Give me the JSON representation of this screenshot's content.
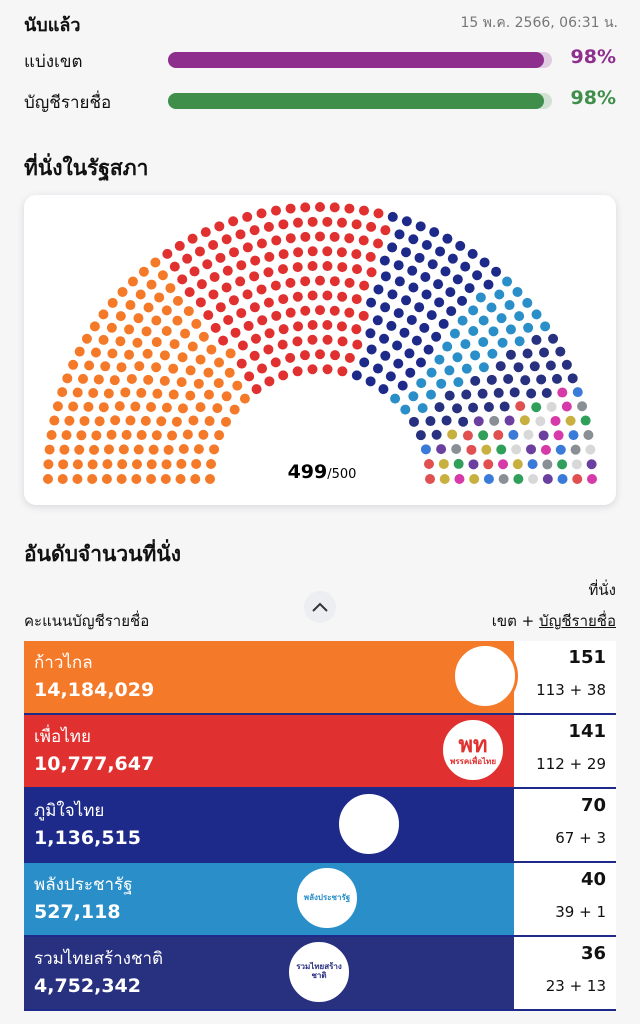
{
  "header": {
    "title": "นับแล้ว",
    "timestamp": "15 พ.ค. 2566, 06:31 น."
  },
  "progress": [
    {
      "label": "แบ่งเขต",
      "value": 98,
      "value_label": "98%",
      "color": "#8e2f8e"
    },
    {
      "label": "บัญชีรายชื่อ",
      "value": 98,
      "value_label": "98%",
      "color": "#3f8f4a"
    }
  ],
  "parliament": {
    "title": "ที่นั่งในรัฐสภา",
    "counted": 499,
    "total": {
      "value": 500,
      "label": "/500"
    }
  },
  "ranking": {
    "title": "อันดับจำนวนที่นั่ง",
    "seats_header": "ที่นั่ง",
    "votes_header": "คะแนนบัญชีรายชื่อ",
    "breakdown_district": "เขต +",
    "breakdown_list": "บัญชีรายชื่อ",
    "rows": [
      {
        "party": "ก้าวไกล",
        "votes": "14,184,029",
        "seats": 151,
        "breakdown": "113 + 38",
        "color": "#f47a2a"
      },
      {
        "party": "เพื่อไทย",
        "votes": "10,777,647",
        "seats": 141,
        "breakdown": "112 + 29",
        "color": "#e0302f",
        "logo_text": [
          "พท",
          "พรรคเพื่อไทย"
        ]
      },
      {
        "party": "ภูมิใจไทย",
        "votes": "1,136,515",
        "seats": 70,
        "breakdown": "67 + 3",
        "color": "#1d2a8a"
      },
      {
        "party": "พลังประชารัฐ",
        "votes": "527,118",
        "seats": 40,
        "breakdown": "39 + 1",
        "color": "#2a8fc8",
        "logo_text": [
          "พลังประชารัฐ"
        ]
      },
      {
        "party": "รวมไทยสร้างชาติ",
        "votes": "4,752,342",
        "seats": 36,
        "breakdown": "23 + 13",
        "color": "#283080",
        "logo_text": [
          "รวมไทยสร้างชาติ"
        ]
      }
    ]
  }
}
